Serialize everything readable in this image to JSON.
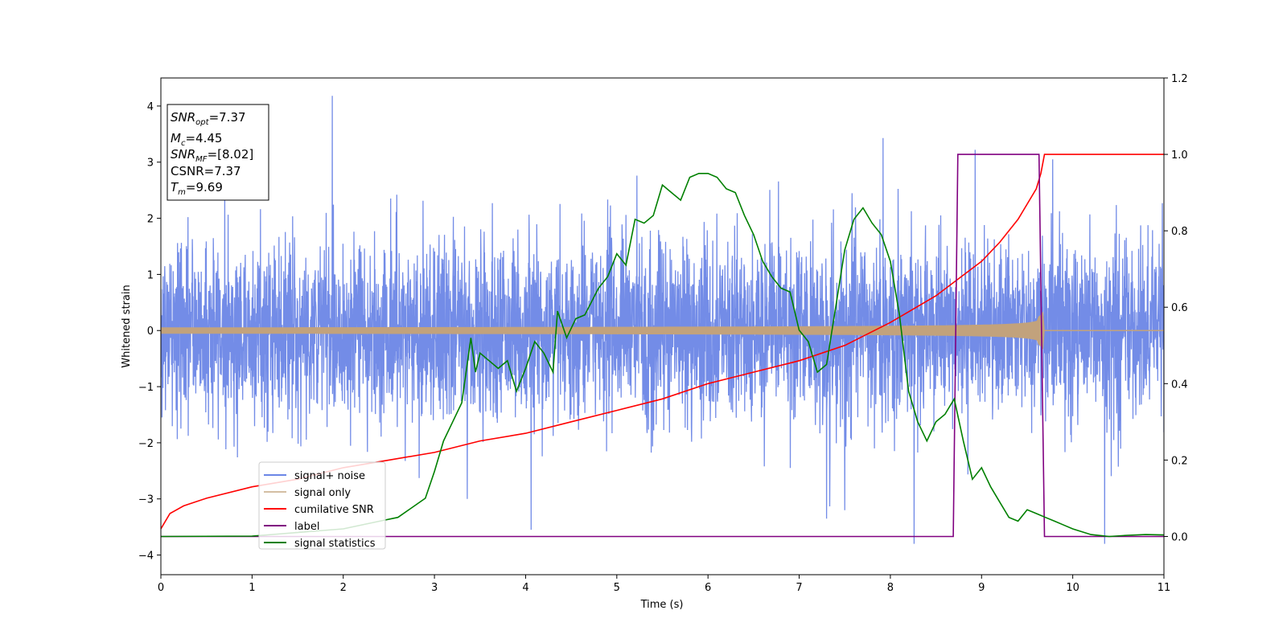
{
  "chart_data": {
    "type": "line",
    "xlabel": "Time (s)",
    "ylabel": "Whitened strain",
    "xlim": [
      0,
      11
    ],
    "ylim_left": [
      -4.35,
      4.5
    ],
    "ylim_right": [
      -0.1,
      1.2
    ],
    "xticks": [
      "0",
      "1",
      "2",
      "3",
      "4",
      "5",
      "6",
      "7",
      "8",
      "9",
      "10",
      "11"
    ],
    "yticks_left": [
      "−4",
      "−3",
      "−2",
      "−1",
      "0",
      "1",
      "2",
      "3",
      "4"
    ],
    "yticks_right": [
      "0.0",
      "0.2",
      "0.4",
      "0.6",
      "0.8",
      "1.0",
      "1.2"
    ],
    "grid": false,
    "legend_position": "lower-left",
    "annotation": {
      "snr_opt": {
        "base": "SNR",
        "sub": "opt",
        "value": "=7.37"
      },
      "mc": {
        "base": "M",
        "sub": "c",
        "value": "=4.45"
      },
      "snr_mf": {
        "base": "SNR",
        "sub": "MF",
        "value": "=[8.02]"
      },
      "csnr": {
        "text": "CSNR=7.37"
      },
      "tm": {
        "base": "T",
        "sub": "m",
        "value": "=9.69"
      }
    },
    "series": [
      {
        "name": "signal+ noise",
        "axis": "left",
        "color": "#6b86e6",
        "kind": "noise",
        "sigma": 0.8,
        "spikes": [
          [
            1.88,
            4.18
          ],
          [
            7.92,
            3.43
          ],
          [
            4.06,
            -3.55
          ],
          [
            8.26,
            -3.8
          ],
          [
            10.35,
            -3.8
          ],
          [
            7.3,
            -3.35
          ],
          [
            9.78,
            3.05
          ],
          [
            8.93,
            3.22
          ],
          [
            5.22,
            2.76
          ],
          [
            3.36,
            -3.0
          ]
        ]
      },
      {
        "name": "signal only",
        "axis": "left",
        "color": "#c2a27c",
        "kind": "chirp",
        "t_merge": 9.69
      },
      {
        "name": "cumilative SNR",
        "axis": "right",
        "color": "#ff0000",
        "x": [
          0,
          0.1,
          0.25,
          0.5,
          1,
          1.5,
          2,
          2.5,
          3,
          3.5,
          4,
          4.5,
          5,
          5.5,
          6,
          6.5,
          7,
          7.5,
          8,
          8.5,
          9,
          9.2,
          9.4,
          9.5,
          9.6,
          9.65,
          9.69,
          11
        ],
        "values": [
          0.02,
          0.06,
          0.08,
          0.1,
          0.13,
          0.15,
          0.18,
          0.2,
          0.22,
          0.25,
          0.27,
          0.3,
          0.33,
          0.36,
          0.4,
          0.43,
          0.46,
          0.5,
          0.56,
          0.63,
          0.72,
          0.77,
          0.83,
          0.87,
          0.91,
          0.95,
          1.0,
          1.0
        ]
      },
      {
        "name": "label",
        "axis": "right",
        "color": "#800080",
        "x": [
          0,
          8.69,
          8.74,
          9.63,
          9.69,
          11
        ],
        "values": [
          0,
          0,
          1,
          1,
          0,
          0
        ]
      },
      {
        "name": "signal statistics",
        "axis": "right",
        "color": "#008000",
        "x": [
          0,
          1,
          2,
          2.4,
          2.6,
          2.9,
          3.0,
          3.1,
          3.2,
          3.3,
          3.4,
          3.45,
          3.5,
          3.6,
          3.7,
          3.8,
          3.9,
          4.0,
          4.1,
          4.2,
          4.3,
          4.35,
          4.45,
          4.55,
          4.65,
          4.8,
          4.9,
          5.0,
          5.1,
          5.2,
          5.3,
          5.4,
          5.5,
          5.6,
          5.7,
          5.8,
          5.9,
          6.0,
          6.1,
          6.2,
          6.3,
          6.4,
          6.5,
          6.6,
          6.7,
          6.8,
          6.9,
          7.0,
          7.1,
          7.2,
          7.3,
          7.4,
          7.5,
          7.6,
          7.7,
          7.8,
          7.9,
          8.0,
          8.1,
          8.2,
          8.3,
          8.4,
          8.5,
          8.6,
          8.7,
          8.8,
          8.9,
          9.0,
          9.1,
          9.2,
          9.3,
          9.4,
          9.5,
          9.6,
          9.7,
          9.8,
          9.9,
          10.0,
          10.2,
          10.4,
          10.6,
          10.8,
          11
        ],
        "values": [
          0,
          0.001,
          0.02,
          0.04,
          0.05,
          0.1,
          0.17,
          0.25,
          0.3,
          0.35,
          0.52,
          0.43,
          0.48,
          0.46,
          0.44,
          0.46,
          0.38,
          0.44,
          0.51,
          0.48,
          0.43,
          0.59,
          0.52,
          0.57,
          0.58,
          0.65,
          0.68,
          0.74,
          0.71,
          0.83,
          0.82,
          0.84,
          0.92,
          0.9,
          0.88,
          0.94,
          0.95,
          0.95,
          0.94,
          0.91,
          0.9,
          0.84,
          0.79,
          0.72,
          0.68,
          0.65,
          0.64,
          0.54,
          0.51,
          0.43,
          0.45,
          0.6,
          0.75,
          0.83,
          0.86,
          0.82,
          0.79,
          0.72,
          0.58,
          0.38,
          0.3,
          0.25,
          0.3,
          0.32,
          0.36,
          0.25,
          0.15,
          0.18,
          0.13,
          0.09,
          0.05,
          0.04,
          0.07,
          0.06,
          0.05,
          0.04,
          0.03,
          0.02,
          0.005,
          0,
          0.003,
          0.005,
          0.004
        ]
      }
    ]
  }
}
